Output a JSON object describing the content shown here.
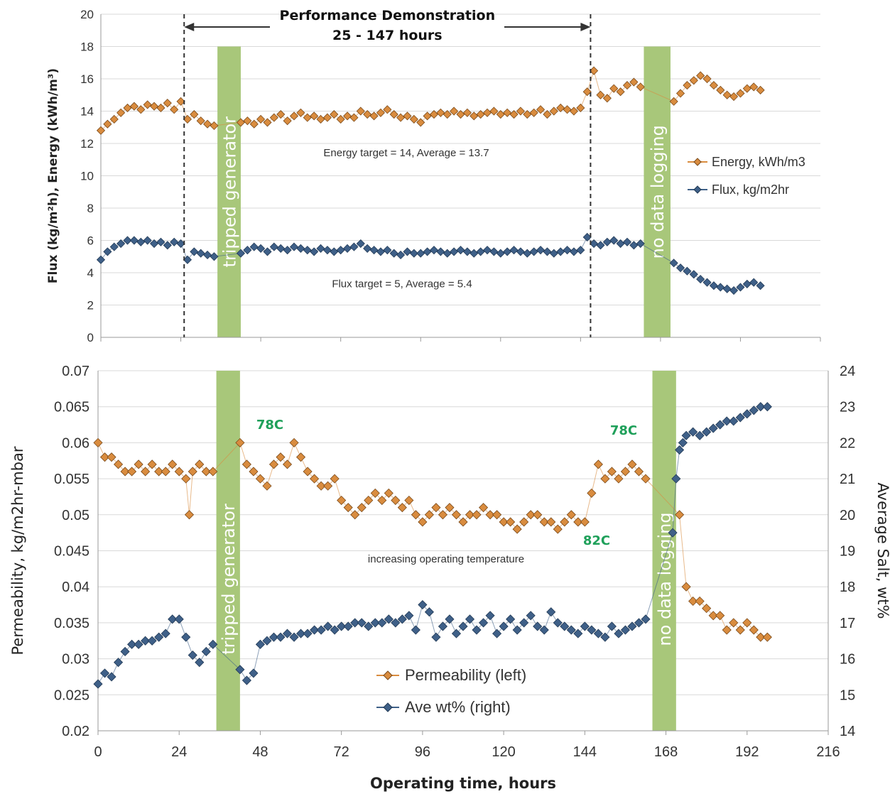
{
  "chart_data": [
    {
      "type": "scatter",
      "ylabel": "Flux (kg/m²h), Energy (kWh/m³)",
      "xlim": [
        0,
        216
      ],
      "ylim": [
        0,
        20
      ],
      "x_ticks": [
        "0",
        "24",
        "48",
        "72",
        "96",
        "120",
        "144",
        "168",
        "192",
        "216"
      ],
      "y_ticks": [
        "0",
        "2",
        "4",
        "6",
        "8",
        "10",
        "12",
        "14",
        "16",
        "18",
        "20"
      ],
      "grid": true,
      "legend_position": "right",
      "series": [
        {
          "name": "Energy, kWh/m3",
          "color": "#d98c3f",
          "x": [
            0,
            2,
            4,
            6,
            8,
            10,
            12,
            14,
            16,
            18,
            20,
            22,
            24,
            26,
            28,
            30,
            32,
            34,
            42,
            44,
            46,
            48,
            50,
            52,
            54,
            56,
            58,
            60,
            62,
            64,
            66,
            68,
            70,
            72,
            74,
            76,
            78,
            80,
            82,
            84,
            86,
            88,
            90,
            92,
            94,
            96,
            98,
            100,
            102,
            104,
            106,
            108,
            110,
            112,
            114,
            116,
            118,
            120,
            122,
            124,
            126,
            128,
            130,
            132,
            134,
            136,
            138,
            140,
            142,
            144,
            146,
            148,
            150,
            152,
            154,
            156,
            158,
            160,
            162,
            172,
            174,
            176,
            178,
            180,
            182,
            184,
            186,
            188,
            190,
            192,
            194,
            196,
            198
          ],
          "values": [
            12.8,
            13.2,
            13.5,
            13.9,
            14.2,
            14.3,
            14.1,
            14.4,
            14.3,
            14.2,
            14.5,
            14.1,
            14.6,
            13.5,
            13.8,
            13.4,
            13.2,
            13.1,
            13.3,
            13.4,
            13.2,
            13.5,
            13.3,
            13.6,
            13.8,
            13.4,
            13.7,
            13.9,
            13.6,
            13.7,
            13.5,
            13.6,
            13.8,
            13.5,
            13.7,
            13.6,
            14.0,
            13.8,
            13.7,
            13.9,
            14.1,
            13.8,
            13.6,
            13.7,
            13.5,
            13.3,
            13.7,
            13.8,
            13.9,
            13.8,
            14.0,
            13.8,
            13.9,
            13.7,
            13.8,
            13.9,
            14.0,
            13.8,
            13.9,
            13.8,
            14.0,
            13.8,
            13.9,
            14.1,
            13.8,
            14.0,
            14.2,
            14.1,
            14.0,
            14.2,
            15.2,
            16.5,
            15.0,
            14.8,
            15.4,
            15.2,
            15.6,
            15.8,
            15.5,
            14.6,
            15.1,
            15.6,
            15.9,
            16.2,
            16.0,
            15.6,
            15.3,
            15.0,
            14.9,
            15.1,
            15.4,
            15.5,
            15.3
          ]
        },
        {
          "name": "Flux, kg/m2hr",
          "color": "#3f6088",
          "x": [
            0,
            2,
            4,
            6,
            8,
            10,
            12,
            14,
            16,
            18,
            20,
            22,
            24,
            26,
            28,
            30,
            32,
            34,
            42,
            44,
            46,
            48,
            50,
            52,
            54,
            56,
            58,
            60,
            62,
            64,
            66,
            68,
            70,
            72,
            74,
            76,
            78,
            80,
            82,
            84,
            86,
            88,
            90,
            92,
            94,
            96,
            98,
            100,
            102,
            104,
            106,
            108,
            110,
            112,
            114,
            116,
            118,
            120,
            122,
            124,
            126,
            128,
            130,
            132,
            134,
            136,
            138,
            140,
            142,
            144,
            146,
            148,
            150,
            152,
            154,
            156,
            158,
            160,
            162,
            172,
            174,
            176,
            178,
            180,
            182,
            184,
            186,
            188,
            190,
            192,
            194,
            196,
            198
          ],
          "values": [
            4.8,
            5.3,
            5.6,
            5.8,
            6.0,
            6.0,
            5.9,
            6.0,
            5.8,
            5.9,
            5.7,
            5.9,
            5.8,
            4.8,
            5.3,
            5.2,
            5.1,
            5.0,
            5.2,
            5.4,
            5.6,
            5.5,
            5.3,
            5.6,
            5.5,
            5.4,
            5.6,
            5.5,
            5.4,
            5.3,
            5.5,
            5.4,
            5.3,
            5.4,
            5.5,
            5.6,
            5.8,
            5.5,
            5.4,
            5.3,
            5.4,
            5.2,
            5.1,
            5.3,
            5.2,
            5.2,
            5.3,
            5.4,
            5.3,
            5.2,
            5.3,
            5.4,
            5.3,
            5.2,
            5.3,
            5.4,
            5.3,
            5.2,
            5.3,
            5.4,
            5.3,
            5.2,
            5.3,
            5.4,
            5.3,
            5.2,
            5.3,
            5.4,
            5.3,
            5.4,
            6.2,
            5.8,
            5.7,
            5.9,
            6.0,
            5.8,
            5.9,
            5.7,
            5.8,
            4.6,
            4.3,
            4.1,
            3.9,
            3.6,
            3.4,
            3.2,
            3.1,
            3.0,
            2.9,
            3.1,
            3.3,
            3.4,
            3.2
          ]
        }
      ],
      "annotations": {
        "perf_title_line1": "Performance Demonstration",
        "perf_title_line2": "25 - 147 hours",
        "perf_start_x": 25,
        "perf_end_x": 147,
        "energy_note": "Energy target = 14,  Average = 13.7",
        "flux_note": "Flux target = 5,  Average = 5.4",
        "band_tripped": {
          "label": "tripped generator",
          "x_start": 35,
          "x_end": 42
        },
        "band_nolog": {
          "label": "no data logging",
          "x_start": 163,
          "x_end": 171
        }
      }
    },
    {
      "type": "scatter",
      "xlabel": "Operating time, hours",
      "ylabel": "Permeability, kg/m2hr-mbar",
      "ylabel_right": "Average Salt, wt%",
      "xlim": [
        0,
        216
      ],
      "ylim": [
        0.02,
        0.07
      ],
      "ylim_right": [
        14,
        24
      ],
      "x_ticks": [
        "0",
        "24",
        "48",
        "72",
        "96",
        "120",
        "144",
        "168",
        "192",
        "216"
      ],
      "y_ticks": [
        "0.02",
        "0.025",
        "0.03",
        "0.035",
        "0.04",
        "0.045",
        "0.05",
        "0.055",
        "0.06",
        "0.065",
        "0.07"
      ],
      "y_ticks_right": [
        "14",
        "15",
        "16",
        "17",
        "18",
        "19",
        "20",
        "21",
        "22",
        "23",
        "24"
      ],
      "grid": true,
      "legend_position": "bottom-center",
      "series": [
        {
          "name": "Permeability (left)",
          "axis": "left",
          "color": "#d98c3f",
          "x": [
            0,
            2,
            4,
            6,
            8,
            10,
            12,
            14,
            16,
            18,
            20,
            22,
            24,
            26,
            27,
            28,
            30,
            32,
            34,
            42,
            44,
            46,
            48,
            50,
            52,
            54,
            56,
            58,
            60,
            62,
            64,
            66,
            68,
            70,
            72,
            74,
            76,
            78,
            80,
            82,
            84,
            86,
            88,
            90,
            92,
            94,
            96,
            98,
            100,
            102,
            104,
            106,
            108,
            110,
            112,
            114,
            116,
            118,
            120,
            122,
            124,
            126,
            128,
            130,
            132,
            134,
            136,
            138,
            140,
            142,
            144,
            146,
            148,
            150,
            152,
            154,
            156,
            158,
            160,
            162,
            172,
            174,
            176,
            178,
            180,
            182,
            184,
            186,
            188,
            190,
            192,
            194,
            196,
            198
          ],
          "values": [
            0.06,
            0.058,
            0.058,
            0.057,
            0.056,
            0.056,
            0.057,
            0.056,
            0.057,
            0.056,
            0.056,
            0.057,
            0.056,
            0.055,
            0.05,
            0.056,
            0.057,
            0.056,
            0.056,
            0.06,
            0.057,
            0.056,
            0.055,
            0.054,
            0.057,
            0.058,
            0.057,
            0.06,
            0.058,
            0.056,
            0.055,
            0.054,
            0.054,
            0.055,
            0.052,
            0.051,
            0.05,
            0.051,
            0.052,
            0.053,
            0.052,
            0.053,
            0.052,
            0.051,
            0.052,
            0.05,
            0.049,
            0.05,
            0.051,
            0.05,
            0.051,
            0.05,
            0.049,
            0.05,
            0.05,
            0.051,
            0.05,
            0.05,
            0.049,
            0.049,
            0.048,
            0.049,
            0.05,
            0.05,
            0.049,
            0.049,
            0.048,
            0.049,
            0.05,
            0.049,
            0.049,
            0.053,
            0.057,
            0.055,
            0.056,
            0.055,
            0.056,
            0.057,
            0.056,
            0.055,
            0.05,
            0.04,
            0.038,
            0.038,
            0.037,
            0.036,
            0.036,
            0.034,
            0.035,
            0.034,
            0.035,
            0.034,
            0.033,
            0.033
          ]
        },
        {
          "name": "Ave wt% (right)",
          "axis": "right",
          "color": "#3f6088",
          "x": [
            0,
            2,
            4,
            6,
            8,
            10,
            12,
            14,
            16,
            18,
            20,
            22,
            24,
            26,
            28,
            30,
            32,
            34,
            42,
            44,
            46,
            48,
            50,
            52,
            54,
            56,
            58,
            60,
            62,
            64,
            66,
            68,
            70,
            72,
            74,
            76,
            78,
            80,
            82,
            84,
            86,
            88,
            90,
            92,
            94,
            96,
            98,
            100,
            102,
            104,
            106,
            108,
            110,
            112,
            114,
            116,
            118,
            120,
            122,
            124,
            126,
            128,
            130,
            132,
            134,
            136,
            138,
            140,
            142,
            144,
            146,
            148,
            150,
            152,
            154,
            156,
            158,
            160,
            162,
            170,
            171,
            172,
            173,
            174,
            176,
            178,
            180,
            182,
            184,
            186,
            188,
            190,
            192,
            194,
            196,
            198
          ],
          "values": [
            15.3,
            15.6,
            15.5,
            15.9,
            16.2,
            16.4,
            16.4,
            16.5,
            16.5,
            16.6,
            16.7,
            17.1,
            17.1,
            16.6,
            16.1,
            15.9,
            16.2,
            16.4,
            15.7,
            15.4,
            15.6,
            16.4,
            16.5,
            16.6,
            16.6,
            16.7,
            16.6,
            16.7,
            16.7,
            16.8,
            16.8,
            16.9,
            16.8,
            16.9,
            16.9,
            17.0,
            17.0,
            16.9,
            17.0,
            17.0,
            17.1,
            17.0,
            17.1,
            17.2,
            16.8,
            17.5,
            17.3,
            16.6,
            16.9,
            17.1,
            16.7,
            16.9,
            17.1,
            16.8,
            17.0,
            17.2,
            16.7,
            16.9,
            17.1,
            16.8,
            17.0,
            17.2,
            16.9,
            16.8,
            17.3,
            17.0,
            16.9,
            16.8,
            16.7,
            16.9,
            16.8,
            16.7,
            16.6,
            16.9,
            16.7,
            16.8,
            16.9,
            17.0,
            17.1,
            19.5,
            21.0,
            21.8,
            22.0,
            22.2,
            22.3,
            22.2,
            22.3,
            22.4,
            22.5,
            22.6,
            22.6,
            22.7,
            22.8,
            22.9,
            23.0,
            23.0
          ]
        }
      ],
      "annotations": {
        "temp_78_left": {
          "label": "78C",
          "x": 48,
          "y": 0.06
        },
        "temp_82": {
          "label": "82C",
          "x": 150,
          "y": 0.047
        },
        "temp_78_right": {
          "label": "78C",
          "x": 154,
          "y": 0.0595
        },
        "temp_note": "increasing operating temperature",
        "band_tripped": {
          "label": "tripped generator",
          "x_start": 35,
          "x_end": 42
        },
        "band_nolog": {
          "label": "no data logging",
          "x_start": 164,
          "x_end": 171
        }
      }
    }
  ]
}
